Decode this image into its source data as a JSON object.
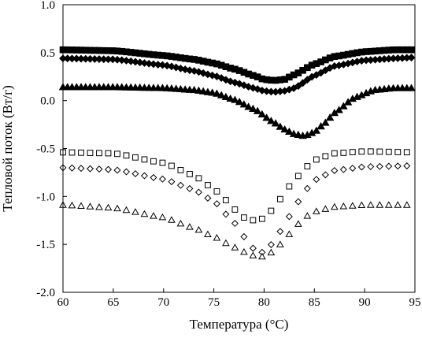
{
  "chart_data": {
    "type": "scatter",
    "title": "",
    "xlabel": "Температура (°C)",
    "ylabel": "Тепловой поток (Вт/г)",
    "xlim": [
      60,
      95
    ],
    "ylim": [
      -2.0,
      1.0
    ],
    "xticks": [
      60,
      65,
      70,
      75,
      80,
      85,
      90,
      95
    ],
    "yticks": [
      1.0,
      0.5,
      0.0,
      -0.5,
      -1.0,
      -1.5,
      -2.0
    ],
    "ytick_labels": [
      "1.0",
      "0.5",
      "0.0",
      "-0.5",
      "-1.0",
      "-1.5",
      "-2.0"
    ],
    "grid": false,
    "legend": "none",
    "series": [
      {
        "marker": "square",
        "filled": true,
        "x": [
          60,
          65,
          70,
          73,
          75,
          77,
          79,
          80,
          81,
          82,
          83,
          85,
          87,
          90,
          93,
          95
        ],
        "y": [
          0.53,
          0.52,
          0.47,
          0.43,
          0.39,
          0.33,
          0.26,
          0.22,
          0.21,
          0.22,
          0.27,
          0.38,
          0.46,
          0.51,
          0.53,
          0.53
        ]
      },
      {
        "marker": "diamond",
        "filled": true,
        "x": [
          60,
          65,
          70,
          73,
          75,
          77,
          79,
          80,
          81,
          82,
          83,
          85,
          87,
          90,
          93,
          95
        ],
        "y": [
          0.44,
          0.43,
          0.37,
          0.31,
          0.26,
          0.19,
          0.13,
          0.1,
          0.09,
          0.1,
          0.13,
          0.26,
          0.36,
          0.42,
          0.44,
          0.45
        ]
      },
      {
        "marker": "triangle",
        "filled": true,
        "x": [
          60,
          65,
          70,
          73,
          75,
          77,
          79,
          81,
          82,
          83,
          84,
          85,
          86,
          87,
          89,
          91,
          93,
          95
        ],
        "y": [
          0.14,
          0.14,
          0.13,
          0.11,
          0.08,
          0.01,
          -0.09,
          -0.23,
          -0.3,
          -0.35,
          -0.37,
          -0.33,
          -0.24,
          -0.13,
          0.03,
          0.11,
          0.13,
          0.13
        ]
      },
      {
        "marker": "square",
        "filled": false,
        "x": [
          60,
          65,
          70,
          73,
          75,
          76,
          77,
          78,
          79,
          80,
          81,
          82,
          83,
          85,
          87,
          90,
          95
        ],
        "y": [
          -0.54,
          -0.55,
          -0.65,
          -0.78,
          -0.92,
          -1.02,
          -1.13,
          -1.22,
          -1.25,
          -1.23,
          -1.12,
          -0.97,
          -0.82,
          -0.62,
          -0.55,
          -0.53,
          -0.54
        ]
      },
      {
        "marker": "diamond",
        "filled": false,
        "x": [
          60,
          65,
          70,
          73,
          75,
          77,
          78,
          79,
          80,
          81,
          82,
          83,
          84,
          85,
          87,
          90,
          95
        ],
        "y": [
          -0.7,
          -0.72,
          -0.82,
          -0.93,
          -1.05,
          -1.27,
          -1.42,
          -1.55,
          -1.59,
          -1.47,
          -1.3,
          -1.12,
          -0.95,
          -0.83,
          -0.73,
          -0.69,
          -0.68
        ]
      },
      {
        "marker": "triangle",
        "filled": false,
        "x": [
          60,
          65,
          70,
          73,
          75,
          77,
          78,
          79,
          80,
          81,
          82,
          83,
          84,
          85,
          87,
          90,
          95
        ],
        "y": [
          -1.09,
          -1.12,
          -1.22,
          -1.33,
          -1.42,
          -1.53,
          -1.58,
          -1.62,
          -1.63,
          -1.57,
          -1.46,
          -1.33,
          -1.22,
          -1.16,
          -1.11,
          -1.09,
          -1.09
        ]
      }
    ]
  }
}
